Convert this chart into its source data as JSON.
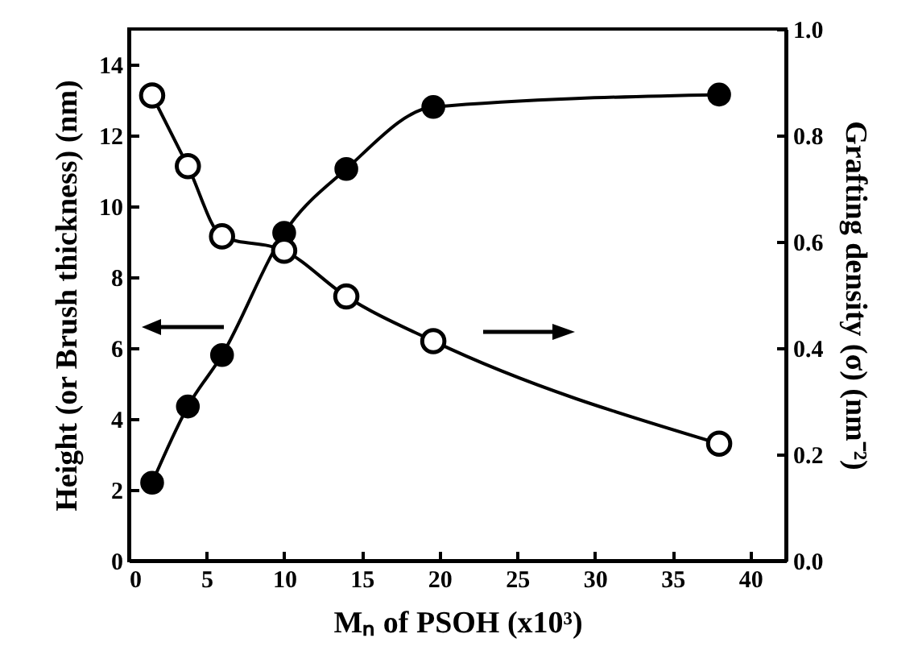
{
  "chart_data": {
    "type": "line",
    "xlabel": "Mₙ of PSOH (x10³)",
    "ylabel": "Height (or Brush thickness) (nm)",
    "y2label": "Grafting density (σ) (nm⁻²)",
    "x": [
      1.5,
      3.8,
      6,
      10,
      14,
      19.6,
      38
    ],
    "series": [
      {
        "color": "#000000",
        "values": [
          2.2,
          4.35,
          5.8,
          9.25,
          11.05,
          12.8,
          13.15
        ]
      },
      {
        "color": "#000000",
        "axis": "y2",
        "values": [
          0.875,
          0.742,
          0.61,
          0.583,
          0.497,
          0.413,
          0.22
        ]
      }
    ],
    "marker": "circle",
    "line_style": "solid",
    "xlim": [
      0,
      42.3
    ],
    "xticks": [
      0,
      5,
      10,
      15,
      20,
      25,
      30,
      35,
      40
    ],
    "ylim": [
      0,
      15
    ],
    "yticks": [
      0,
      2,
      4,
      6,
      8,
      10,
      12,
      14
    ],
    "y2lim": [
      0,
      1
    ],
    "y2ticks": [
      {
        "value": 0,
        "label": "0.0"
      },
      {
        "value": 0.2,
        "label": "0.2"
      },
      {
        "value": 0.4,
        "label": "0.4"
      },
      {
        "value": 0.6,
        "label": "0.6"
      },
      {
        "value": 0.8,
        "label": "0.8"
      },
      {
        "value": 1,
        "label": "1.0"
      }
    ],
    "grid": false
  }
}
